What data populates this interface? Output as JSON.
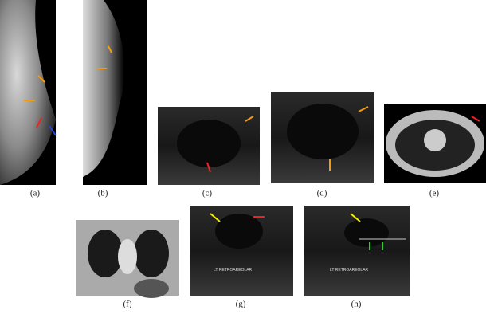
{
  "panels": [
    {
      "label": "(a)"
    },
    {
      "label": "(b)"
    },
    {
      "label": "(c)"
    },
    {
      "label": "(d)"
    },
    {
      "label": "(e)"
    },
    {
      "label": "(f)"
    },
    {
      "label": "(g)",
      "image_text": "LT RETROAREOLAR"
    },
    {
      "label": "(h)",
      "image_text": "LT RETROAREOLAR"
    }
  ]
}
